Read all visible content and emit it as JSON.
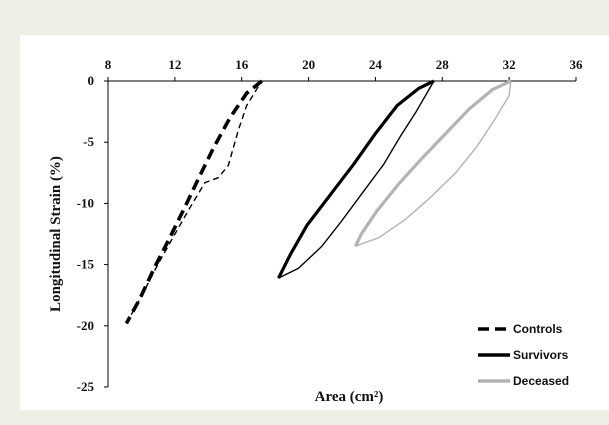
{
  "chart_data": {
    "type": "line",
    "xlabel": "Area (cm²)",
    "ylabel": "Longitudinal Strain (%)",
    "xlim": [
      8,
      36
    ],
    "ylim": [
      -25,
      0
    ],
    "x_ticks": [
      8,
      12,
      16,
      20,
      24,
      28,
      32,
      36
    ],
    "y_ticks": [
      0,
      -5,
      -10,
      -15,
      -20,
      -25
    ],
    "x_axis_position": "top",
    "grid": false,
    "legend_position": "bottom-right",
    "series": [
      {
        "name": "Controls",
        "color": "#000000",
        "style": "dashed",
        "loops": [
          {
            "width": "thick",
            "points": [
              [
                17.2,
                0
              ],
              [
                16.3,
                -1.0
              ],
              [
                15.3,
                -3.0
              ],
              [
                14.3,
                -5.5
              ],
              [
                13.4,
                -8.0
              ],
              [
                12.6,
                -10.3
              ],
              [
                11.7,
                -12.8
              ],
              [
                10.8,
                -15.2
              ],
              [
                9.9,
                -17.8
              ],
              [
                9.1,
                -19.8
              ]
            ]
          },
          {
            "width": "thin",
            "points": [
              [
                9.1,
                -19.8
              ],
              [
                10.0,
                -17.6
              ],
              [
                10.9,
                -15.2
              ],
              [
                11.8,
                -13.0
              ],
              [
                12.8,
                -10.6
              ],
              [
                13.8,
                -8.3
              ],
              [
                14.6,
                -7.9
              ],
              [
                15.2,
                -6.9
              ],
              [
                15.8,
                -4.0
              ],
              [
                16.3,
                -2.0
              ],
              [
                17.2,
                0
              ]
            ]
          }
        ]
      },
      {
        "name": "Survivors",
        "color": "#000000",
        "style": "solid",
        "loops": [
          {
            "width": "thick",
            "points": [
              [
                27.5,
                0
              ],
              [
                26.6,
                -0.6
              ],
              [
                25.3,
                -2.0
              ],
              [
                24.0,
                -4.3
              ],
              [
                22.7,
                -6.8
              ],
              [
                21.3,
                -9.3
              ],
              [
                19.9,
                -11.8
              ],
              [
                18.9,
                -14.2
              ],
              [
                18.2,
                -16.1
              ]
            ]
          },
          {
            "width": "thin",
            "points": [
              [
                18.2,
                -16.1
              ],
              [
                19.4,
                -15.3
              ],
              [
                20.8,
                -13.5
              ],
              [
                22.0,
                -11.4
              ],
              [
                23.3,
                -9.0
              ],
              [
                24.5,
                -6.8
              ],
              [
                25.5,
                -4.5
              ],
              [
                26.4,
                -2.6
              ],
              [
                27.5,
                0
              ]
            ]
          }
        ]
      },
      {
        "name": "Deceased",
        "color": "#b3b3b3",
        "style": "solid",
        "loops": [
          {
            "width": "thick",
            "points": [
              [
                32.1,
                0
              ],
              [
                31.0,
                -0.7
              ],
              [
                29.6,
                -2.3
              ],
              [
                28.2,
                -4.3
              ],
              [
                26.8,
                -6.3
              ],
              [
                25.4,
                -8.4
              ],
              [
                24.1,
                -10.6
              ],
              [
                23.2,
                -12.4
              ],
              [
                22.8,
                -13.5
              ]
            ]
          },
          {
            "width": "thin",
            "points": [
              [
                22.8,
                -13.5
              ],
              [
                24.2,
                -12.8
              ],
              [
                25.8,
                -11.3
              ],
              [
                27.3,
                -9.5
              ],
              [
                28.8,
                -7.5
              ],
              [
                30.1,
                -5.3
              ],
              [
                31.2,
                -3.0
              ],
              [
                32.0,
                -1.2
              ],
              [
                32.1,
                0
              ]
            ]
          }
        ]
      }
    ]
  }
}
